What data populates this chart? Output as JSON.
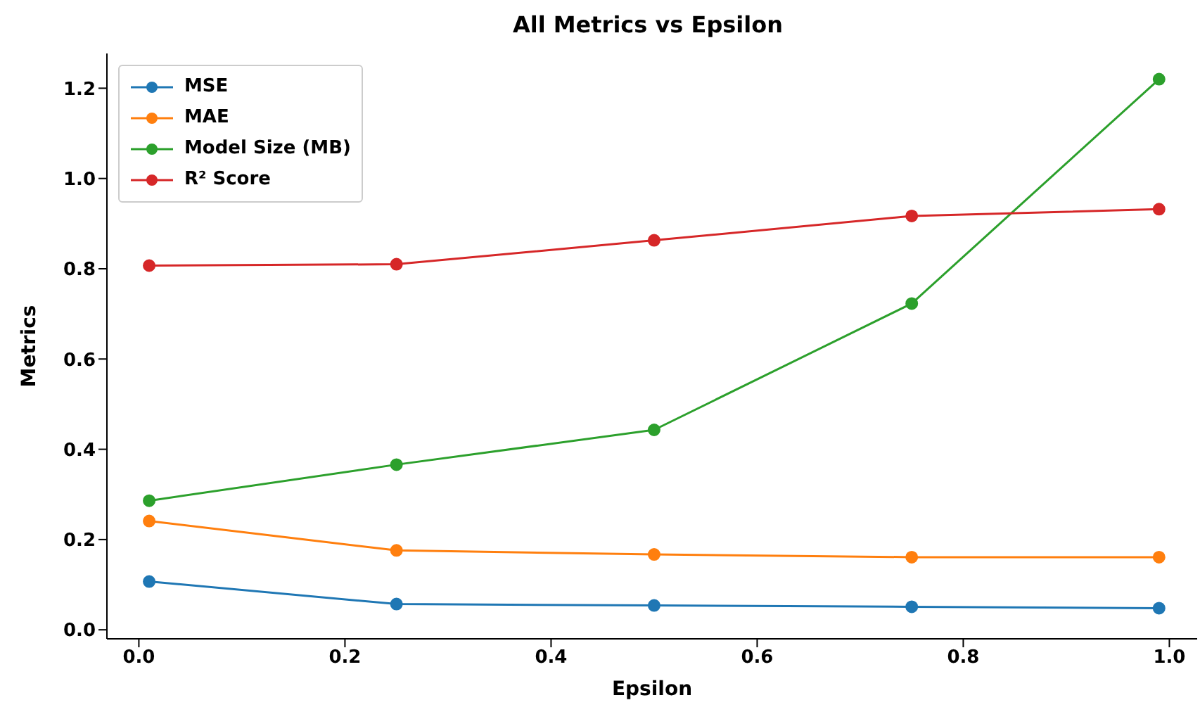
{
  "chart_data": {
    "type": "line",
    "title": "All Metrics vs Epsilon",
    "xlabel": "Epsilon",
    "ylabel": "Metrics",
    "x": [
      0.01,
      0.25,
      0.5,
      0.75,
      0.99
    ],
    "series": [
      {
        "name": "MSE",
        "color": "#1f77b4",
        "values": [
          0.107,
          0.057,
          0.054,
          0.051,
          0.048
        ]
      },
      {
        "name": "MAE",
        "color": "#ff7f0e",
        "values": [
          0.241,
          0.176,
          0.167,
          0.161,
          0.161
        ]
      },
      {
        "name": "Model Size (MB)",
        "color": "#2ca02c",
        "values": [
          0.286,
          0.366,
          0.443,
          0.723,
          1.22
        ]
      },
      {
        "name": "R² Score",
        "color": "#d62728",
        "values": [
          0.807,
          0.81,
          0.863,
          0.917,
          0.932
        ]
      }
    ],
    "xlim": [
      -0.031,
      1.027
    ],
    "ylim": [
      -0.02,
      1.277
    ],
    "xticks": [
      {
        "value": 0,
        "label": "0.0"
      },
      0.2,
      0.4,
      0.6,
      0.8,
      {
        "value": 1,
        "label": "1.0"
      }
    ],
    "yticks": [
      {
        "value": 0,
        "label": "0.0"
      },
      0.2,
      0.4,
      0.6,
      0.8,
      {
        "value": 1,
        "label": "1.0"
      },
      {
        "value": 1.2,
        "label": "1.2"
      }
    ],
    "marker": "circle",
    "line_style": "solid",
    "legend": "top left",
    "grid": false
  }
}
